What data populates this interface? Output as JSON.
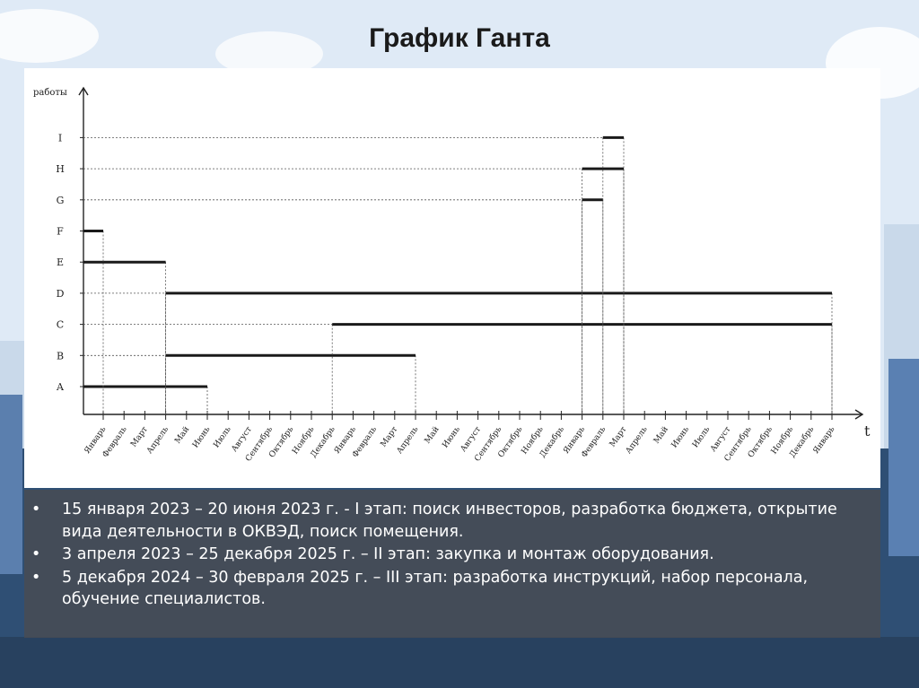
{
  "slide": {
    "title": "График Ганта"
  },
  "bullets": [
    "15 января 2023 – 20 июня 2023 г. - I этап: поиск инвесторов, разработка бюджета, открытие вида деятельности в ОКВЭД, поиск помещения.",
    "3 апреля 2023 – 25 декабря 2025 г. – II этап: закупка и монтаж оборудования.",
    "5 декабря 2024 – 30 февраля 2025 г. – III этап: разработка инструкций, набор персонала, обучение специалистов."
  ],
  "bullet_symbol": "•",
  "colors": {
    "bar": "#1a1a1a",
    "axis": "#222222",
    "guide": "#555555",
    "panel_text": "#ffffff"
  },
  "chart_data": {
    "type": "gantt",
    "ylabel": "работы",
    "xlabel": "t",
    "x_ticks": [
      "Январь",
      "Февраль",
      "Март",
      "Апрель",
      "Май",
      "Июнь",
      "Июль",
      "Август",
      "Сентябрь",
      "Октябрь",
      "Ноябрь",
      "Декабрь",
      "Январь",
      "Февраль",
      "Март",
      "Апрель",
      "Май",
      "Июнь",
      "Август",
      "Сентябрь",
      "Октябрь",
      "Ноябрь",
      "Декабрь",
      "Январь",
      "Февраль",
      "Март",
      "Апрель",
      "Май",
      "Июнь",
      "Июль",
      "Август",
      "Сентябрь",
      "Октябрь",
      "Ноябрь",
      "Декабрь",
      "Январь"
    ],
    "tasks": [
      {
        "name": "A",
        "start": "Январь 2023",
        "end": "Июнь 2023"
      },
      {
        "name": "B",
        "start": "Апрель 2023",
        "end": "Апрель 2024"
      },
      {
        "name": "C",
        "start": "Декабрь 2023",
        "end": "Декабрь 2025"
      },
      {
        "name": "D",
        "start": "Апрель 2023",
        "end": "Декабрь 2025"
      },
      {
        "name": "E",
        "start": "Январь 2023",
        "end": "Апрель 2023"
      },
      {
        "name": "F",
        "start": "Январь 2023",
        "end": "Январь 2023"
      },
      {
        "name": "G",
        "start": "Декабрь 2024",
        "end": "Январь 2025"
      },
      {
        "name": "H",
        "start": "Декабрь 2024",
        "end": "Февраль 2025"
      },
      {
        "name": "I",
        "start": "Январь 2025",
        "end": "Февраль 2025"
      }
    ],
    "grid": false
  }
}
